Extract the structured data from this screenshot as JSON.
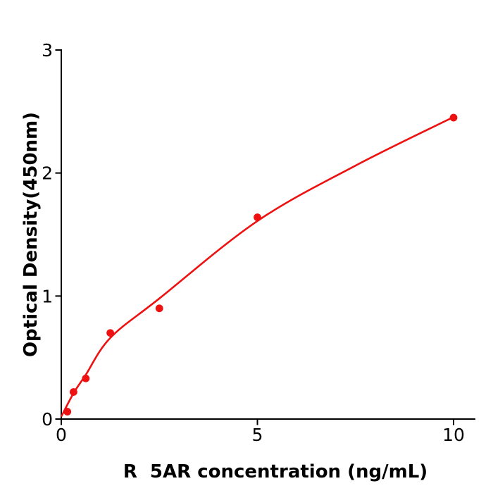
{
  "figure": {
    "background_color": "#ffffff",
    "title": ""
  },
  "chart_data": {
    "type": "scatter",
    "title": "",
    "xlabel": "R  5AR concentration (ng/mL)",
    "ylabel": "Optical Density(450nm)",
    "xlim": [
      0,
      10.56
    ],
    "ylim": [
      0,
      3
    ],
    "x_ticks": [
      0,
      5,
      10
    ],
    "y_ticks": [
      0,
      1,
      2,
      3
    ],
    "grid": false,
    "legend_position": "none",
    "axis_color": "#000000",
    "tick_label_color": "#000000",
    "series": [
      {
        "name": "standard-points",
        "type": "scatter",
        "color": "#ee1111",
        "marker": "circle",
        "x": [
          0.156,
          0.3125,
          0.625,
          1.25,
          2.5,
          5,
          10
        ],
        "y": [
          0.06,
          0.22,
          0.33,
          0.7,
          0.9,
          1.64,
          2.45
        ]
      },
      {
        "name": "fit-curve",
        "type": "line",
        "color": "#ee1111",
        "x": [
          0,
          0.3125,
          0.625,
          1.25,
          2.5,
          5,
          7.5,
          10
        ],
        "y": [
          0.02,
          0.21,
          0.36,
          0.66,
          0.98,
          1.61,
          2.06,
          2.455
        ]
      }
    ]
  }
}
